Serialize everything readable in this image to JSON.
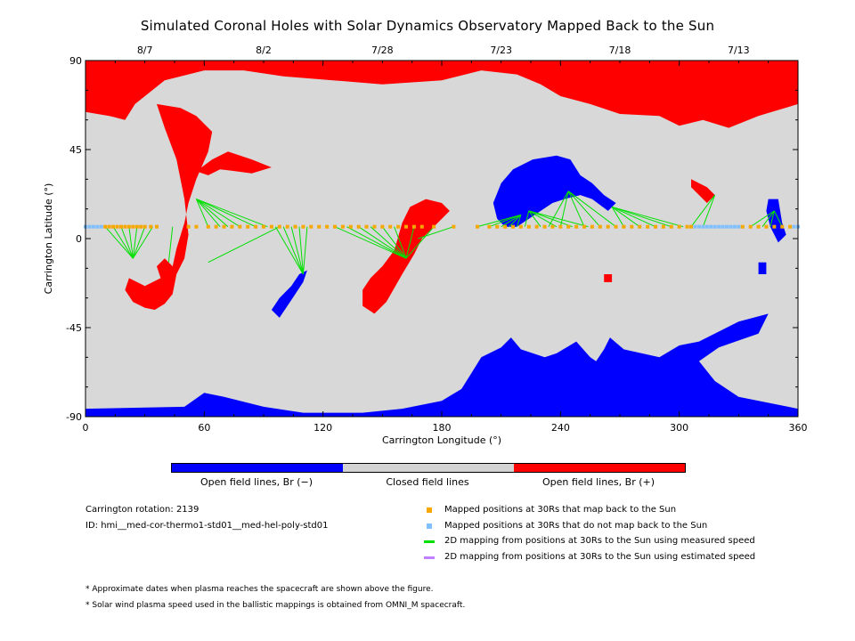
{
  "chart_data": {
    "type": "map",
    "title": "Simulated Coronal Holes with Solar Dynamics Observatory Mapped Back to the Sun",
    "xlabel": "Carrington Longitude (°)",
    "ylabel": "Carrington Latitude (°)",
    "xlim": [
      0,
      360
    ],
    "ylim": [
      -90,
      90
    ],
    "x_ticks": [
      "0",
      "60",
      "120",
      "180",
      "240",
      "300",
      "360"
    ],
    "y_ticks": [
      "90",
      "45",
      "0",
      "-45",
      "-90"
    ],
    "top_dates": [
      {
        "label": "8/7",
        "lon": 30
      },
      {
        "label": "8/2",
        "lon": 90
      },
      {
        "label": "7/28",
        "lon": 150
      },
      {
        "label": "7/23",
        "lon": 210
      },
      {
        "label": "7/18",
        "lon": 270
      },
      {
        "label": "7/13",
        "lon": 330
      }
    ],
    "colorbar": [
      {
        "label": "Open field lines, Br (−)",
        "color": "#0000ff"
      },
      {
        "label": "Closed field lines",
        "color": "#d3d3d3"
      },
      {
        "label": "Open field lines, Br (+)",
        "color": "#ff0000"
      }
    ],
    "colors": {
      "negative_open": "#0000ff",
      "closed": "#d8d8d8",
      "positive_open": "#ff0000",
      "mapped_back": "#f5a800",
      "not_mapped": "#80c0ff",
      "measured_speed": "#00e000",
      "estimated_speed": "#c080ff"
    },
    "positive_holes": [
      [
        [
          0,
          90
        ],
        [
          360,
          90
        ],
        [
          360,
          68
        ],
        [
          340,
          62
        ],
        [
          325,
          56
        ],
        [
          312,
          60
        ],
        [
          300,
          57
        ],
        [
          290,
          62
        ],
        [
          270,
          63
        ],
        [
          255,
          68
        ],
        [
          240,
          72
        ],
        [
          230,
          78
        ],
        [
          218,
          83
        ],
        [
          200,
          85
        ],
        [
          180,
          80
        ],
        [
          150,
          78
        ],
        [
          125,
          80
        ],
        [
          100,
          82
        ],
        [
          80,
          85
        ],
        [
          60,
          85
        ],
        [
          40,
          80
        ],
        [
          25,
          68
        ],
        [
          20,
          60
        ],
        [
          12,
          62
        ],
        [
          0,
          64
        ]
      ],
      [
        [
          36,
          68
        ],
        [
          48,
          66
        ],
        [
          56,
          62
        ],
        [
          64,
          54
        ],
        [
          62,
          44
        ],
        [
          56,
          30
        ],
        [
          52,
          18
        ],
        [
          50,
          8
        ],
        [
          46,
          -5
        ],
        [
          44,
          -14
        ],
        [
          40,
          -10
        ],
        [
          36,
          -14
        ],
        [
          38,
          -20
        ],
        [
          30,
          -24
        ],
        [
          22,
          -20
        ],
        [
          20,
          -26
        ],
        [
          24,
          -32
        ],
        [
          30,
          -35
        ],
        [
          35,
          -36
        ],
        [
          40,
          -33
        ],
        [
          44,
          -28
        ],
        [
          46,
          -18
        ],
        [
          50,
          -10
        ],
        [
          52,
          2
        ],
        [
          50,
          20
        ],
        [
          46,
          40
        ],
        [
          40,
          56
        ]
      ],
      [
        [
          56,
          34
        ],
        [
          64,
          40
        ],
        [
          72,
          44
        ],
        [
          84,
          40
        ],
        [
          94,
          36
        ],
        [
          84,
          33
        ],
        [
          76,
          34
        ],
        [
          68,
          35
        ],
        [
          62,
          32
        ]
      ],
      [
        [
          140,
          -34
        ],
        [
          146,
          -38
        ],
        [
          152,
          -32
        ],
        [
          160,
          -18
        ],
        [
          166,
          -8
        ],
        [
          170,
          0
        ],
        [
          176,
          6
        ],
        [
          184,
          14
        ],
        [
          180,
          18
        ],
        [
          172,
          20
        ],
        [
          164,
          16
        ],
        [
          160,
          8
        ],
        [
          156,
          -6
        ],
        [
          150,
          -14
        ],
        [
          144,
          -20
        ],
        [
          140,
          -26
        ]
      ],
      [
        [
          306,
          30
        ],
        [
          314,
          26
        ],
        [
          318,
          22
        ],
        [
          314,
          18
        ],
        [
          310,
          22
        ],
        [
          306,
          26
        ]
      ],
      [
        [
          262,
          -18
        ],
        [
          266,
          -18
        ],
        [
          266,
          -22
        ],
        [
          262,
          -22
        ]
      ]
    ],
    "negative_holes": [
      [
        [
          0,
          -90
        ],
        [
          360,
          -90
        ],
        [
          360,
          -86
        ],
        [
          330,
          -80
        ],
        [
          318,
          -72
        ],
        [
          310,
          -62
        ],
        [
          320,
          -55
        ],
        [
          340,
          -48
        ],
        [
          345,
          -38
        ],
        [
          330,
          -42
        ],
        [
          310,
          -52
        ],
        [
          300,
          -54
        ],
        [
          290,
          -60
        ],
        [
          272,
          -56
        ],
        [
          265,
          -50
        ],
        [
          262,
          -56
        ],
        [
          258,
          -62
        ],
        [
          255,
          -60
        ],
        [
          248,
          -52
        ],
        [
          238,
          -58
        ],
        [
          232,
          -60
        ],
        [
          220,
          -56
        ],
        [
          215,
          -50
        ],
        [
          210,
          -55
        ],
        [
          200,
          -60
        ],
        [
          195,
          -68
        ],
        [
          190,
          -76
        ],
        [
          180,
          -82
        ],
        [
          160,
          -86
        ],
        [
          140,
          -88
        ],
        [
          110,
          -88
        ],
        [
          90,
          -85
        ],
        [
          70,
          -80
        ],
        [
          60,
          -78
        ],
        [
          50,
          -85
        ],
        [
          0,
          -86
        ]
      ],
      [
        [
          210,
          28
        ],
        [
          216,
          35
        ],
        [
          226,
          40
        ],
        [
          238,
          42
        ],
        [
          245,
          40
        ],
        [
          250,
          32
        ],
        [
          256,
          28
        ],
        [
          262,
          22
        ],
        [
          268,
          18
        ],
        [
          264,
          14
        ],
        [
          256,
          20
        ],
        [
          250,
          22
        ],
        [
          242,
          20
        ],
        [
          236,
          18
        ],
        [
          230,
          14
        ],
        [
          224,
          10
        ],
        [
          218,
          6
        ],
        [
          212,
          6
        ],
        [
          208,
          10
        ],
        [
          206,
          18
        ]
      ],
      [
        [
          98,
          -40
        ],
        [
          102,
          -34
        ],
        [
          106,
          -28
        ],
        [
          110,
          -22
        ],
        [
          112,
          -16
        ],
        [
          108,
          -18
        ],
        [
          104,
          -24
        ],
        [
          98,
          -30
        ],
        [
          94,
          -36
        ]
      ],
      [
        [
          345,
          20
        ],
        [
          350,
          20
        ],
        [
          352,
          8
        ],
        [
          354,
          2
        ],
        [
          350,
          -2
        ],
        [
          346,
          6
        ],
        [
          344,
          14
        ]
      ],
      [
        [
          340,
          -12
        ],
        [
          344,
          -12
        ],
        [
          344,
          -18
        ],
        [
          340,
          -18
        ]
      ]
    ],
    "mapped_positions": {
      "lat": 6,
      "mapped_lons": [
        10,
        12,
        14,
        16,
        18,
        20,
        22,
        24,
        26,
        28,
        30,
        33,
        36,
        52,
        56,
        62,
        66,
        70,
        74,
        78,
        82,
        86,
        90,
        94,
        98,
        102,
        106,
        110,
        114,
        118,
        122,
        126,
        130,
        134,
        138,
        142,
        146,
        150,
        154,
        158,
        162,
        166,
        170,
        176,
        186,
        198,
        204,
        208,
        212,
        216,
        220,
        224,
        228,
        232,
        236,
        240,
        244,
        248,
        252,
        256,
        260,
        264,
        268,
        272,
        276,
        280,
        284,
        288,
        292,
        296,
        300,
        304,
        306,
        332,
        336,
        340,
        344,
        348,
        352,
        356
      ],
      "not_mapped_lons": [
        0,
        2,
        4,
        6,
        8,
        308,
        310,
        312,
        314,
        316,
        318,
        320,
        322,
        324,
        326,
        328,
        330,
        358,
        360
      ]
    },
    "mappings_measured": [
      [
        [
          10,
          6
        ],
        [
          24,
          -10
        ]
      ],
      [
        [
          14,
          6
        ],
        [
          24,
          -10
        ]
      ],
      [
        [
          18,
          6
        ],
        [
          24,
          -10
        ]
      ],
      [
        [
          22,
          6
        ],
        [
          24,
          -10
        ]
      ],
      [
        [
          26,
          6
        ],
        [
          24,
          -10
        ]
      ],
      [
        [
          30,
          6
        ],
        [
          24,
          -10
        ]
      ],
      [
        [
          34,
          6
        ],
        [
          24,
          -10
        ]
      ],
      [
        [
          44,
          6
        ],
        [
          42,
          -12
        ]
      ],
      [
        [
          56,
          20
        ],
        [
          62,
          6
        ]
      ],
      [
        [
          56,
          20
        ],
        [
          68,
          6
        ]
      ],
      [
        [
          56,
          20
        ],
        [
          72,
          6
        ]
      ],
      [
        [
          56,
          20
        ],
        [
          78,
          6
        ]
      ],
      [
        [
          56,
          20
        ],
        [
          86,
          6
        ]
      ],
      [
        [
          56,
          20
        ],
        [
          92,
          6
        ]
      ],
      [
        [
          62,
          -12
        ],
        [
          98,
          6
        ]
      ],
      [
        [
          110,
          -18
        ],
        [
          96,
          6
        ]
      ],
      [
        [
          110,
          -18
        ],
        [
          100,
          6
        ]
      ],
      [
        [
          110,
          -18
        ],
        [
          104,
          6
        ]
      ],
      [
        [
          110,
          -18
        ],
        [
          108,
          6
        ]
      ],
      [
        [
          110,
          -18
        ],
        [
          112,
          6
        ]
      ],
      [
        [
          162,
          -10
        ],
        [
          126,
          6
        ]
      ],
      [
        [
          162,
          -10
        ],
        [
          132,
          6
        ]
      ],
      [
        [
          162,
          -10
        ],
        [
          138,
          6
        ]
      ],
      [
        [
          162,
          -10
        ],
        [
          144,
          6
        ]
      ],
      [
        [
          162,
          -10
        ],
        [
          150,
          6
        ]
      ],
      [
        [
          162,
          -10
        ],
        [
          156,
          6
        ]
      ],
      [
        [
          162,
          -10
        ],
        [
          166,
          6
        ]
      ],
      [
        [
          162,
          -10
        ],
        [
          176,
          6
        ]
      ],
      [
        [
          168,
          0
        ],
        [
          186,
          6
        ]
      ],
      [
        [
          220,
          12
        ],
        [
          198,
          6
        ]
      ],
      [
        [
          220,
          12
        ],
        [
          204,
          6
        ]
      ],
      [
        [
          220,
          12
        ],
        [
          210,
          6
        ]
      ],
      [
        [
          220,
          12
        ],
        [
          214,
          6
        ]
      ],
      [
        [
          220,
          12
        ],
        [
          218,
          6
        ]
      ],
      [
        [
          224,
          14
        ],
        [
          222,
          6
        ]
      ],
      [
        [
          224,
          14
        ],
        [
          230,
          6
        ]
      ],
      [
        [
          224,
          14
        ],
        [
          238,
          6
        ]
      ],
      [
        [
          224,
          14
        ],
        [
          246,
          6
        ]
      ],
      [
        [
          224,
          14
        ],
        [
          254,
          6
        ]
      ],
      [
        [
          244,
          24
        ],
        [
          234,
          6
        ]
      ],
      [
        [
          244,
          24
        ],
        [
          240,
          6
        ]
      ],
      [
        [
          244,
          24
        ],
        [
          252,
          6
        ]
      ],
      [
        [
          244,
          24
        ],
        [
          260,
          6
        ]
      ],
      [
        [
          244,
          24
        ],
        [
          268,
          6
        ]
      ],
      [
        [
          266,
          16
        ],
        [
          272,
          6
        ]
      ],
      [
        [
          266,
          16
        ],
        [
          280,
          6
        ]
      ],
      [
        [
          266,
          16
        ],
        [
          288,
          6
        ]
      ],
      [
        [
          266,
          16
        ],
        [
          296,
          6
        ]
      ],
      [
        [
          266,
          16
        ],
        [
          302,
          6
        ]
      ],
      [
        [
          318,
          22
        ],
        [
          306,
          6
        ]
      ],
      [
        [
          318,
          22
        ],
        [
          312,
          6
        ]
      ],
      [
        [
          348,
          14
        ],
        [
          336,
          6
        ]
      ],
      [
        [
          348,
          14
        ],
        [
          342,
          6
        ]
      ],
      [
        [
          348,
          14
        ],
        [
          346,
          6
        ]
      ],
      [
        [
          348,
          14
        ],
        [
          352,
          6
        ]
      ]
    ]
  },
  "colorbar_labels": {
    "negative": "Open field lines, Br (−)",
    "closed": "Closed field lines",
    "positive": "Open field lines, Br (+)"
  },
  "info": {
    "rotation": "Carrington rotation: 2139",
    "id": "ID: hmi__med-cor-thermo1-std01__med-hel-poly-std01"
  },
  "legend": {
    "mapped": "Mapped positions at 30Rs that map back to the Sun",
    "not_mapped": "Mapped positions at 30Rs that do not map back to the Sun",
    "measured": "2D mapping from positions at 30Rs to the Sun using measured speed",
    "estimated": "2D mapping from positions at 30Rs to the Sun using estimated speed"
  },
  "notes": {
    "note1": "* Approximate dates when plasma reaches the spacecraft are shown above the figure.",
    "note2": "* Solar wind plasma speed used in the ballistic mappings is obtained from OMNI_M spacecraft."
  }
}
